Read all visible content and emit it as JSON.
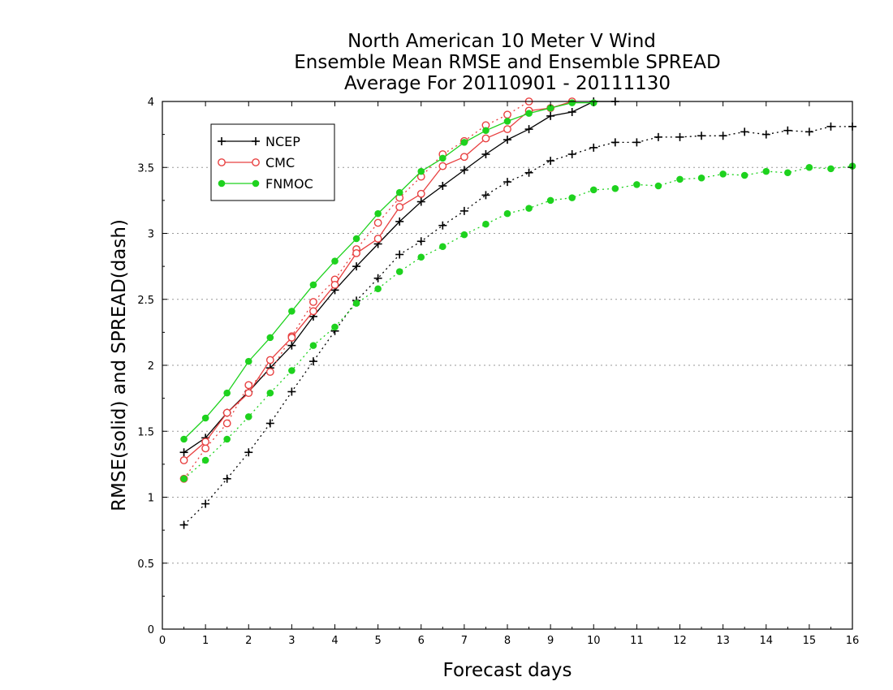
{
  "chart_data": {
    "type": "line",
    "title": [
      "North American 10 Meter V Wind",
      "Ensemble Mean RMSE and Ensemble SPREAD",
      "Average For 20110901 - 20111130"
    ],
    "xlabel": "Forecast days",
    "ylabel": "RMSE(solid) and SPREAD(dash)",
    "xlim": [
      0,
      16
    ],
    "ylim": [
      0,
      4
    ],
    "xticks": [
      "0",
      "1",
      "2",
      "3",
      "4",
      "5",
      "6",
      "7",
      "8",
      "9",
      "10",
      "11",
      "12",
      "13",
      "14",
      "15",
      "16"
    ],
    "yticks": [
      "0",
      "0.5",
      "1",
      "1.5",
      "2",
      "2.5",
      "3",
      "3.5",
      "4"
    ],
    "grid": "horizontal-dotted",
    "legend_position": "top-left",
    "x": [
      0.5,
      1,
      1.5,
      2,
      2.5,
      3,
      3.5,
      4,
      4.5,
      5,
      5.5,
      6,
      6.5,
      7,
      7.5,
      8,
      8.5,
      9,
      9.5,
      10,
      10.5,
      11,
      11.5,
      12,
      12.5,
      13,
      13.5,
      14,
      14.5,
      15,
      15.5,
      16
    ],
    "series": [
      {
        "name": "NCEP",
        "color": "#000000",
        "marker": "plus",
        "rmse": [
          1.34,
          1.45,
          1.64,
          1.8,
          1.98,
          2.15,
          2.37,
          2.57,
          2.75,
          2.92,
          3.09,
          3.24,
          3.36,
          3.48,
          3.6,
          3.71,
          3.79,
          3.89,
          3.92,
          4.0,
          4.0
        ],
        "spread": [
          0.79,
          0.95,
          1.14,
          1.34,
          1.56,
          1.8,
          2.03,
          2.26,
          2.49,
          2.66,
          2.84,
          2.94,
          3.06,
          3.17,
          3.29,
          3.39,
          3.46,
          3.55,
          3.6,
          3.65,
          3.69,
          3.69,
          3.73,
          3.73,
          3.74,
          3.74,
          3.77,
          3.75,
          3.78,
          3.77,
          3.81,
          3.81
        ]
      },
      {
        "name": "CMC",
        "color": "#e84040",
        "marker": "open-circle",
        "rmse": [
          1.28,
          1.42,
          1.64,
          1.79,
          2.04,
          2.21,
          2.41,
          2.61,
          2.85,
          2.96,
          3.2,
          3.3,
          3.51,
          3.58,
          3.72,
          3.79,
          3.93,
          3.95,
          4.0
        ],
        "spread": [
          1.14,
          1.37,
          1.56,
          1.85,
          1.95,
          2.22,
          2.48,
          2.65,
          2.88,
          3.08,
          3.27,
          3.43,
          3.6,
          3.7,
          3.82,
          3.9,
          4.0
        ]
      },
      {
        "name": "FNMOC",
        "color": "#1ed21e",
        "marker": "filled-circle",
        "rmse": [
          1.44,
          1.6,
          1.79,
          2.03,
          2.21,
          2.41,
          2.61,
          2.79,
          2.96,
          3.15,
          3.31,
          3.47,
          3.57,
          3.69,
          3.78,
          3.85,
          3.91,
          3.95,
          3.99,
          3.99
        ],
        "spread": [
          1.14,
          1.28,
          1.44,
          1.61,
          1.79,
          1.96,
          2.15,
          2.29,
          2.47,
          2.58,
          2.71,
          2.82,
          2.9,
          2.99,
          3.07,
          3.15,
          3.19,
          3.25,
          3.27,
          3.33,
          3.34,
          3.37,
          3.36,
          3.41,
          3.42,
          3.45,
          3.44,
          3.47,
          3.46,
          3.5,
          3.49,
          3.51
        ]
      }
    ]
  }
}
